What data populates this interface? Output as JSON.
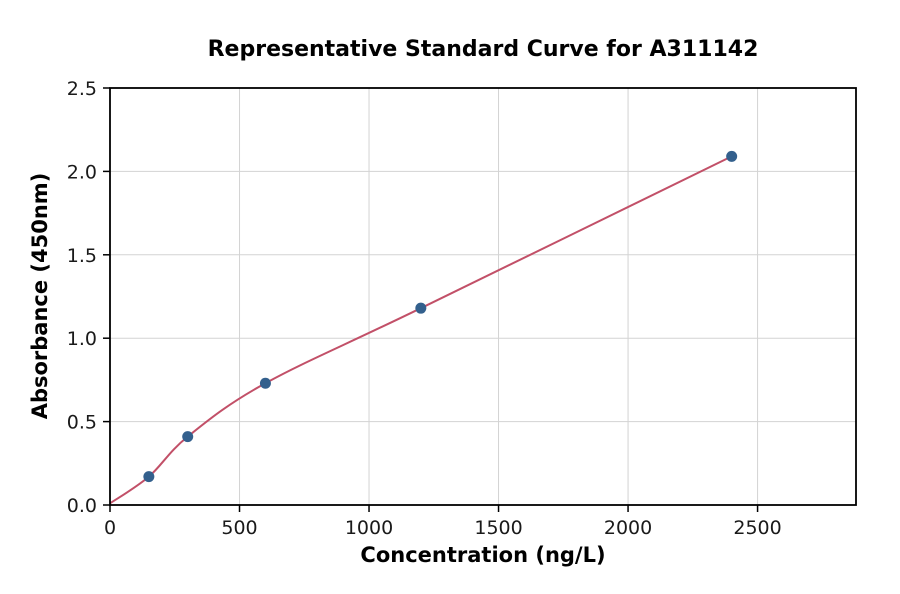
{
  "chart_data": {
    "type": "scatter",
    "title": "Representative Standard Curve for A311142",
    "xlabel": "Concentration (ng/L)",
    "ylabel": "Absorbance (450nm)",
    "xlim": [
      0,
      2880
    ],
    "ylim": [
      0,
      2.5
    ],
    "xticks": [
      0,
      500,
      1000,
      1500,
      2000,
      2500
    ],
    "xtick_labels": [
      "0",
      "500",
      "1000",
      "1500",
      "2000",
      "2500"
    ],
    "yticks": [
      0,
      0.5,
      1.0,
      1.5,
      2.0,
      2.5
    ],
    "ytick_labels": [
      "0.0",
      "0.5",
      "1.0",
      "1.5",
      "2.0",
      "2.5"
    ],
    "grid": true,
    "legend": "none",
    "points": [
      {
        "x": 150,
        "y": 0.17
      },
      {
        "x": 300,
        "y": 0.41
      },
      {
        "x": 600,
        "y": 0.73
      },
      {
        "x": 1200,
        "y": 1.18
      },
      {
        "x": 2400,
        "y": 2.09
      }
    ],
    "fit_line": {
      "description": "smooth standard-curve fit from origin through data points",
      "anchor": {
        "x": 0,
        "y": 0.01
      }
    },
    "colors": {
      "point": "#33608d",
      "line": "#c25068",
      "grid": "#d3d3d3",
      "axis": "#000000",
      "background": "#ffffff"
    }
  }
}
